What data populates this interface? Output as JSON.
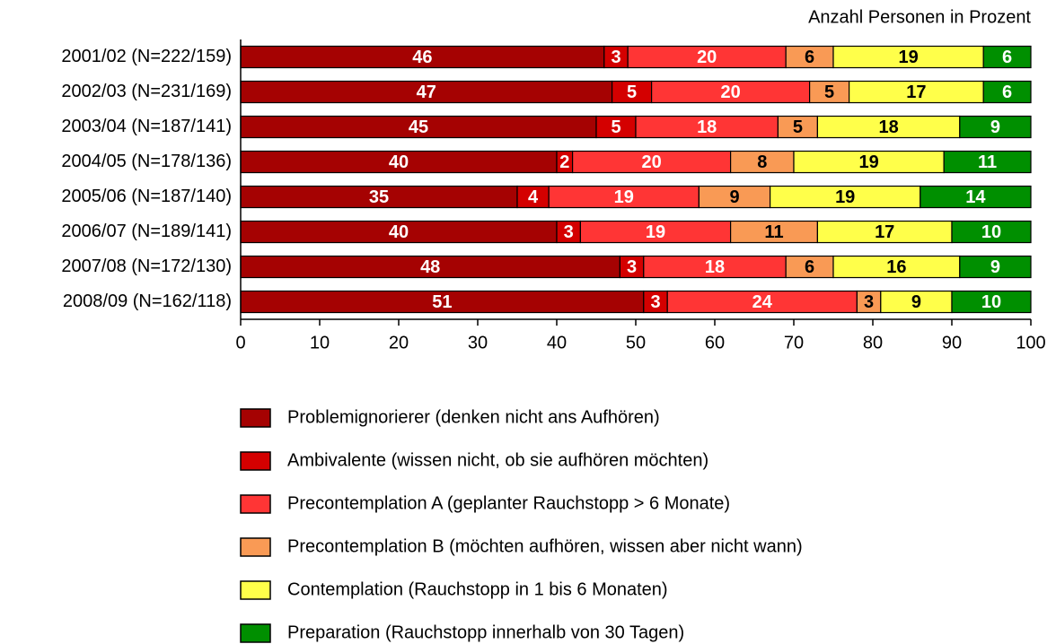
{
  "chart_data": {
    "type": "stacked_bar_horizontal",
    "title": "Anzahl Personen in Prozent",
    "categories": [
      "2001/02 (N=222/159)",
      "2002/03 (N=231/169)",
      "2003/04 (N=187/141)",
      "2004/05 (N=178/136)",
      "2005/06 (N=187/140)",
      "2006/07 (N=189/141)",
      "2007/08 (N=172/130)",
      "2008/09 (N=162/118)"
    ],
    "series": [
      {
        "name": "Problemignorierer (denken nicht ans Aufhören)",
        "color": "#a50202",
        "values": [
          46,
          47,
          45,
          40,
          35,
          40,
          48,
          51
        ]
      },
      {
        "name": "Ambivalente (wissen nicht, ob sie aufhören möchten)",
        "color": "#d40000",
        "values": [
          3,
          5,
          5,
          2,
          4,
          3,
          3,
          3
        ]
      },
      {
        "name": "Precontemplation A (geplanter Rauchstopp > 6 Monate)",
        "color": "#ff3535",
        "values": [
          20,
          20,
          18,
          20,
          19,
          19,
          18,
          24
        ]
      },
      {
        "name": "Precontemplation B (möchten aufhören, wissen aber nicht wann)",
        "color": "#f99a55",
        "values": [
          6,
          5,
          5,
          8,
          9,
          11,
          6,
          3
        ]
      },
      {
        "name": "Contemplation (Rauchstopp in 1 bis 6 Monaten)",
        "color": "#ffff4a",
        "values": [
          19,
          17,
          18,
          19,
          19,
          17,
          16,
          9
        ]
      },
      {
        "name": "Preparation (Rauchstopp innerhalb von 30 Tagen)",
        "color": "#008f00",
        "values": [
          6,
          6,
          9,
          11,
          14,
          10,
          9,
          10
        ]
      }
    ],
    "xlim": [
      0,
      100
    ],
    "xticks": [
      0,
      10,
      20,
      30,
      40,
      50,
      60,
      70,
      80,
      90,
      100
    ],
    "grid": false
  }
}
